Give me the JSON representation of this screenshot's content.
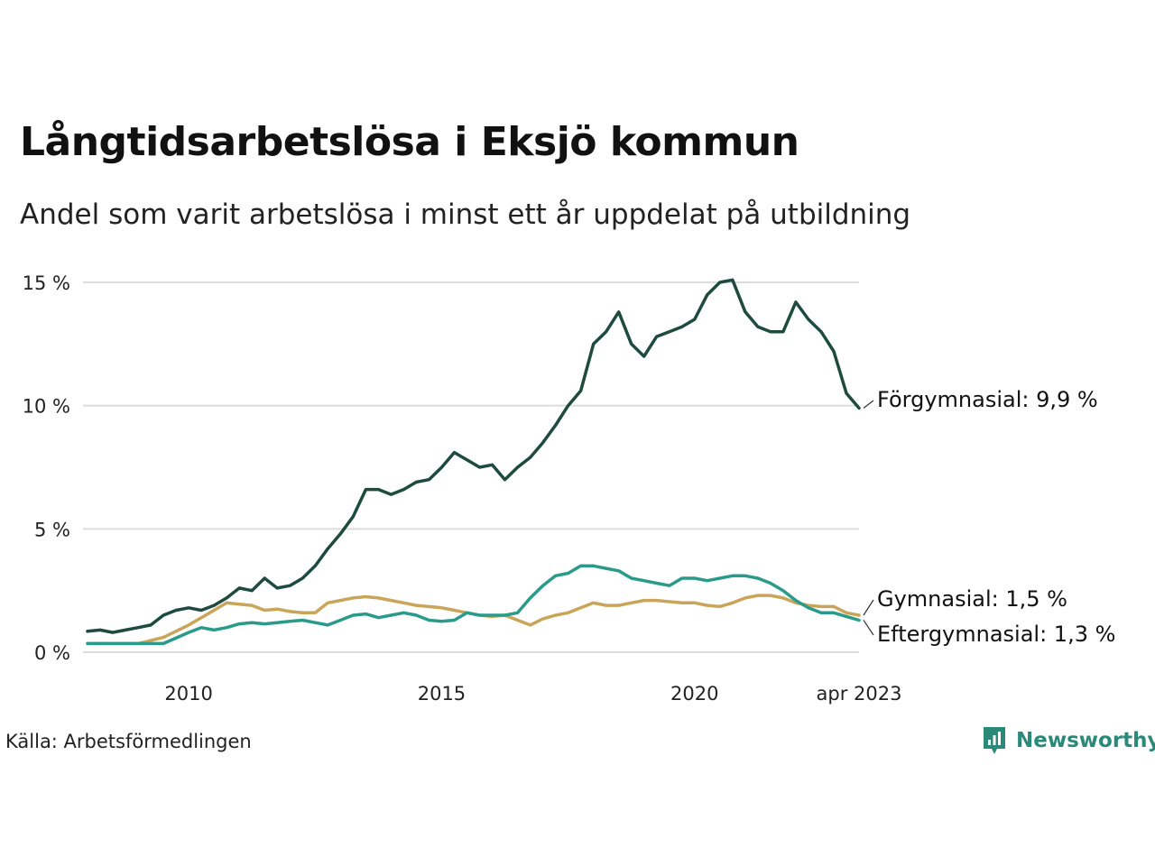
{
  "title": "Långtidsarbetslösa i Eksjö kommun",
  "subtitle": "Andel som varit arbetslösa i minst ett år uppdelat på utbildning",
  "source": "Källa: Arbetsförmedlingen",
  "brand": {
    "name": "Newsworthy",
    "color": "#2a8a7a"
  },
  "chart_data": {
    "type": "line",
    "ylim": [
      0,
      15
    ],
    "yticks": [
      {
        "value": 0,
        "label": "0 %"
      },
      {
        "value": 5,
        "label": "5 %"
      },
      {
        "value": 10,
        "label": "10 %"
      },
      {
        "value": 15,
        "label": "15 %"
      }
    ],
    "xticks": [
      {
        "value": 2010,
        "label": "2010"
      },
      {
        "value": 2015,
        "label": "2015"
      },
      {
        "value": 2020,
        "label": "2020"
      },
      {
        "value": 2023.25,
        "label": "apr 2023"
      }
    ],
    "xlim": [
      2008.0,
      2023.25
    ],
    "grid": true,
    "series": [
      {
        "name": "Förgymnasial",
        "end_label": "Förgymnasial: 9,9 %",
        "color": "#1e4b3e",
        "points": [
          [
            2008.0,
            0.85
          ],
          [
            2008.25,
            0.9
          ],
          [
            2008.5,
            0.8
          ],
          [
            2008.75,
            0.9
          ],
          [
            2009.0,
            1.0
          ],
          [
            2009.25,
            1.1
          ],
          [
            2009.5,
            1.5
          ],
          [
            2009.75,
            1.7
          ],
          [
            2010.0,
            1.8
          ],
          [
            2010.25,
            1.7
          ],
          [
            2010.5,
            1.9
          ],
          [
            2010.75,
            2.2
          ],
          [
            2011.0,
            2.6
          ],
          [
            2011.25,
            2.5
          ],
          [
            2011.5,
            3.0
          ],
          [
            2011.75,
            2.6
          ],
          [
            2012.0,
            2.7
          ],
          [
            2012.25,
            3.0
          ],
          [
            2012.5,
            3.5
          ],
          [
            2012.75,
            4.2
          ],
          [
            2013.0,
            4.8
          ],
          [
            2013.25,
            5.5
          ],
          [
            2013.5,
            6.6
          ],
          [
            2013.75,
            6.6
          ],
          [
            2014.0,
            6.4
          ],
          [
            2014.25,
            6.6
          ],
          [
            2014.5,
            6.9
          ],
          [
            2014.75,
            7.0
          ],
          [
            2015.0,
            7.5
          ],
          [
            2015.25,
            8.1
          ],
          [
            2015.5,
            7.8
          ],
          [
            2015.75,
            7.5
          ],
          [
            2016.0,
            7.6
          ],
          [
            2016.25,
            7.0
          ],
          [
            2016.5,
            7.5
          ],
          [
            2016.75,
            7.9
          ],
          [
            2017.0,
            8.5
          ],
          [
            2017.25,
            9.2
          ],
          [
            2017.5,
            10.0
          ],
          [
            2017.75,
            10.6
          ],
          [
            2018.0,
            12.5
          ],
          [
            2018.25,
            13.0
          ],
          [
            2018.5,
            13.8
          ],
          [
            2018.75,
            12.5
          ],
          [
            2019.0,
            12.0
          ],
          [
            2019.25,
            12.8
          ],
          [
            2019.5,
            13.0
          ],
          [
            2019.75,
            13.2
          ],
          [
            2020.0,
            13.5
          ],
          [
            2020.25,
            14.5
          ],
          [
            2020.5,
            15.0
          ],
          [
            2020.75,
            15.1
          ],
          [
            2021.0,
            13.8
          ],
          [
            2021.25,
            13.2
          ],
          [
            2021.5,
            13.0
          ],
          [
            2021.75,
            13.0
          ],
          [
            2022.0,
            14.2
          ],
          [
            2022.25,
            13.5
          ],
          [
            2022.5,
            13.0
          ],
          [
            2022.75,
            12.2
          ],
          [
            2023.0,
            10.5
          ],
          [
            2023.25,
            9.9
          ]
        ]
      },
      {
        "name": "Gymnasial",
        "end_label": "Gymnasial: 1,5 %",
        "color": "#c9a55a",
        "points": [
          [
            2008.0,
            0.35
          ],
          [
            2008.5,
            0.35
          ],
          [
            2009.0,
            0.35
          ],
          [
            2009.5,
            0.6
          ],
          [
            2010.0,
            1.1
          ],
          [
            2010.25,
            1.4
          ],
          [
            2010.5,
            1.7
          ],
          [
            2010.75,
            2.0
          ],
          [
            2011.0,
            1.95
          ],
          [
            2011.25,
            1.9
          ],
          [
            2011.5,
            1.7
          ],
          [
            2011.75,
            1.75
          ],
          [
            2012.0,
            1.65
          ],
          [
            2012.25,
            1.6
          ],
          [
            2012.5,
            1.6
          ],
          [
            2012.75,
            2.0
          ],
          [
            2013.0,
            2.1
          ],
          [
            2013.25,
            2.2
          ],
          [
            2013.5,
            2.25
          ],
          [
            2013.75,
            2.2
          ],
          [
            2014.0,
            2.1
          ],
          [
            2014.25,
            2.0
          ],
          [
            2014.5,
            1.9
          ],
          [
            2014.75,
            1.85
          ],
          [
            2015.0,
            1.8
          ],
          [
            2015.25,
            1.7
          ],
          [
            2015.5,
            1.6
          ],
          [
            2015.75,
            1.5
          ],
          [
            2016.0,
            1.45
          ],
          [
            2016.25,
            1.5
          ],
          [
            2016.5,
            1.3
          ],
          [
            2016.75,
            1.1
          ],
          [
            2017.0,
            1.35
          ],
          [
            2017.25,
            1.5
          ],
          [
            2017.5,
            1.6
          ],
          [
            2017.75,
            1.8
          ],
          [
            2018.0,
            2.0
          ],
          [
            2018.25,
            1.9
          ],
          [
            2018.5,
            1.9
          ],
          [
            2018.75,
            2.0
          ],
          [
            2019.0,
            2.1
          ],
          [
            2019.25,
            2.1
          ],
          [
            2019.5,
            2.05
          ],
          [
            2019.75,
            2.0
          ],
          [
            2020.0,
            2.0
          ],
          [
            2020.25,
            1.9
          ],
          [
            2020.5,
            1.85
          ],
          [
            2020.75,
            2.0
          ],
          [
            2021.0,
            2.2
          ],
          [
            2021.25,
            2.3
          ],
          [
            2021.5,
            2.3
          ],
          [
            2021.75,
            2.2
          ],
          [
            2022.0,
            2.0
          ],
          [
            2022.25,
            1.9
          ],
          [
            2022.5,
            1.85
          ],
          [
            2022.75,
            1.85
          ],
          [
            2023.0,
            1.6
          ],
          [
            2023.25,
            1.5
          ]
        ]
      },
      {
        "name": "Eftergymnasial",
        "end_label": "Eftergymnasial: 1,3 %",
        "color": "#2a9b8a",
        "points": [
          [
            2008.0,
            0.35
          ],
          [
            2008.5,
            0.35
          ],
          [
            2009.0,
            0.35
          ],
          [
            2009.5,
            0.35
          ],
          [
            2010.0,
            0.8
          ],
          [
            2010.25,
            1.0
          ],
          [
            2010.5,
            0.9
          ],
          [
            2010.75,
            1.0
          ],
          [
            2011.0,
            1.15
          ],
          [
            2011.25,
            1.2
          ],
          [
            2011.5,
            1.15
          ],
          [
            2011.75,
            1.2
          ],
          [
            2012.0,
            1.25
          ],
          [
            2012.25,
            1.3
          ],
          [
            2012.5,
            1.2
          ],
          [
            2012.75,
            1.1
          ],
          [
            2013.0,
            1.3
          ],
          [
            2013.25,
            1.5
          ],
          [
            2013.5,
            1.55
          ],
          [
            2013.75,
            1.4
          ],
          [
            2014.0,
            1.5
          ],
          [
            2014.25,
            1.6
          ],
          [
            2014.5,
            1.5
          ],
          [
            2014.75,
            1.3
          ],
          [
            2015.0,
            1.25
          ],
          [
            2015.25,
            1.3
          ],
          [
            2015.5,
            1.6
          ],
          [
            2015.75,
            1.5
          ],
          [
            2016.0,
            1.5
          ],
          [
            2016.25,
            1.5
          ],
          [
            2016.5,
            1.6
          ],
          [
            2016.75,
            2.2
          ],
          [
            2017.0,
            2.7
          ],
          [
            2017.25,
            3.1
          ],
          [
            2017.5,
            3.2
          ],
          [
            2017.75,
            3.5
          ],
          [
            2018.0,
            3.5
          ],
          [
            2018.25,
            3.4
          ],
          [
            2018.5,
            3.3
          ],
          [
            2018.75,
            3.0
          ],
          [
            2019.0,
            2.9
          ],
          [
            2019.25,
            2.8
          ],
          [
            2019.5,
            2.7
          ],
          [
            2019.75,
            3.0
          ],
          [
            2020.0,
            3.0
          ],
          [
            2020.25,
            2.9
          ],
          [
            2020.5,
            3.0
          ],
          [
            2020.75,
            3.1
          ],
          [
            2021.0,
            3.1
          ],
          [
            2021.25,
            3.0
          ],
          [
            2021.5,
            2.8
          ],
          [
            2021.75,
            2.5
          ],
          [
            2022.0,
            2.1
          ],
          [
            2022.25,
            1.8
          ],
          [
            2022.5,
            1.6
          ],
          [
            2022.75,
            1.6
          ],
          [
            2023.0,
            1.45
          ],
          [
            2023.25,
            1.3
          ]
        ]
      }
    ]
  }
}
